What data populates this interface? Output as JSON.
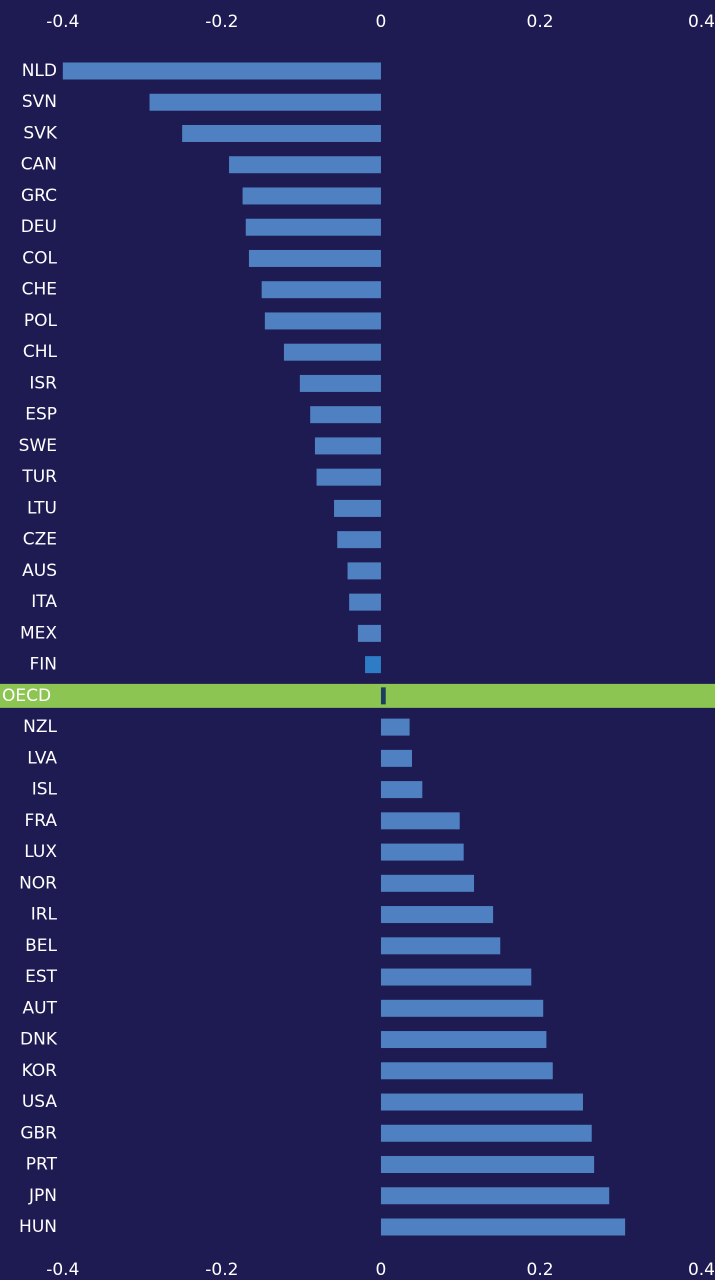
{
  "chart_data": {
    "type": "hbar",
    "categories": [
      "NLD",
      "SVN",
      "SVK",
      "CAN",
      "GRC",
      "DEU",
      "COL",
      "CHE",
      "POL",
      "CHL",
      "ISR",
      "ESP",
      "SWE",
      "TUR",
      "LTU",
      "CZE",
      "AUS",
      "ITA",
      "MEX",
      "FIN",
      "OECD",
      "NZL",
      "LVA",
      "ISL",
      "FRA",
      "LUX",
      "NOR",
      "IRL",
      "BEL",
      "EST",
      "AUT",
      "DNK",
      "KOR",
      "USA",
      "GBR",
      "PRT",
      "JPN",
      "HUN"
    ],
    "values": [
      -0.4,
      -0.291,
      -0.25,
      -0.191,
      -0.174,
      -0.17,
      -0.166,
      -0.15,
      -0.146,
      -0.122,
      -0.102,
      -0.089,
      -0.083,
      -0.081,
      -0.059,
      -0.055,
      -0.042,
      -0.04,
      -0.029,
      -0.02,
      0.006,
      0.036,
      0.039,
      0.052,
      0.099,
      0.104,
      0.117,
      0.141,
      0.15,
      0.189,
      0.204,
      0.208,
      0.216,
      0.254,
      0.265,
      0.268,
      0.287,
      0.307
    ],
    "color": "#4f81c2",
    "colors": [
      "#4f81c2",
      "#4f81c2",
      "#4f81c2",
      "#4f81c2",
      "#4f81c2",
      "#4f81c2",
      "#4f81c2",
      "#4f81c2",
      "#4f81c2",
      "#4f81c2",
      "#4f81c2",
      "#4f81c2",
      "#4f81c2",
      "#4f81c2",
      "#4f81c2",
      "#4f81c2",
      "#4f81c2",
      "#4f81c2",
      "#4f81c2",
      "#2f7cc6",
      "#1f3d5e",
      "#4f81c2",
      "#4f81c2",
      "#4f81c2",
      "#4f81c2",
      "#4f81c2",
      "#4f81c2",
      "#4f81c2",
      "#4f81c2",
      "#4f81c2",
      "#4f81c2",
      "#4f81c2",
      "#4f81c2",
      "#4f81c2",
      "#4f81c2",
      "#4f81c2",
      "#4f81c2",
      "#4f81c2"
    ],
    "highlight": {
      "category_index": 20,
      "color": "#8dc553"
    },
    "xlim": [
      -0.479,
      0.42
    ],
    "xticks": [
      -0.4,
      -0.2,
      0,
      0.2,
      0.4
    ]
  }
}
